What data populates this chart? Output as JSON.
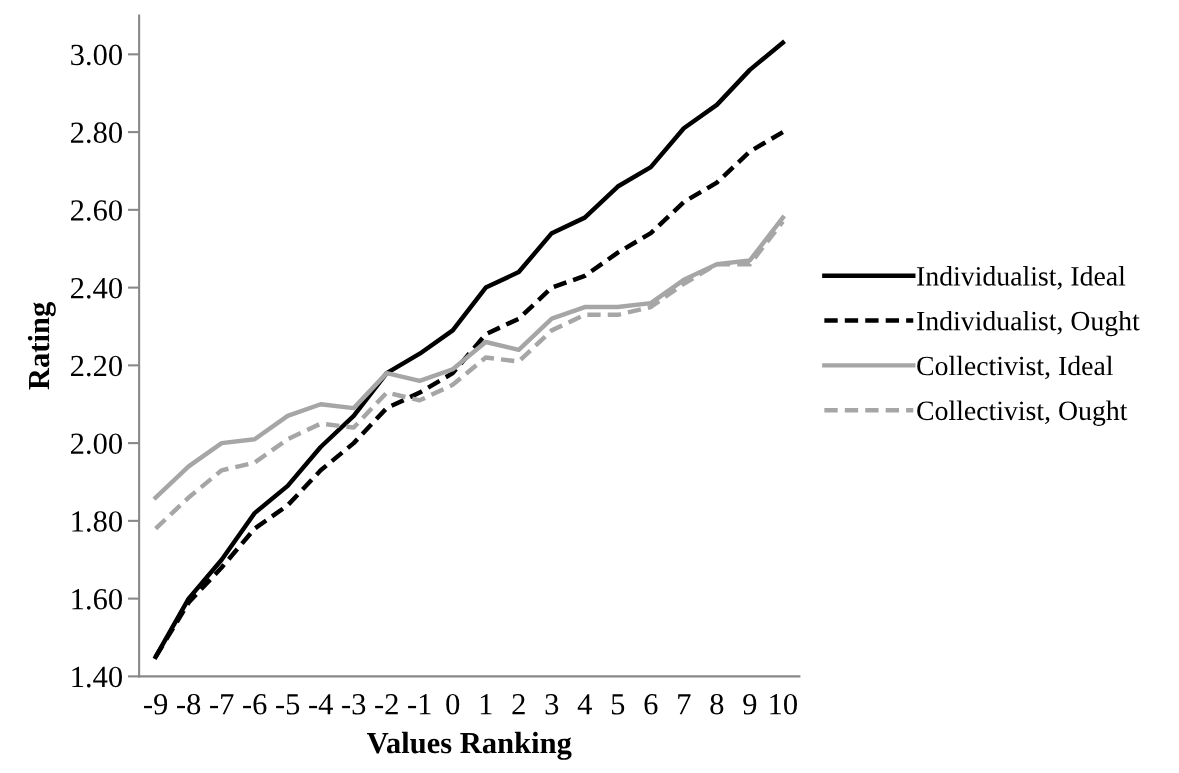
{
  "chart_data": {
    "type": "line",
    "xlabel": "Values Ranking",
    "ylabel": "Rating",
    "categories": [
      "-9",
      "-8",
      "-7",
      "-6",
      "-5",
      "-4",
      "-3",
      "-2",
      "-1",
      "0",
      "1",
      "2",
      "3",
      "4",
      "5",
      "6",
      "7",
      "8",
      "9",
      "10"
    ],
    "series": [
      {
        "name": "Individualist, Ideal",
        "color": "#000000",
        "line_style": "solid",
        "values": [
          1.45,
          1.6,
          1.7,
          1.82,
          1.89,
          1.99,
          2.07,
          2.18,
          2.23,
          2.29,
          2.4,
          2.44,
          2.54,
          2.58,
          2.66,
          2.71,
          2.81,
          2.87,
          2.96,
          3.03
        ]
      },
      {
        "name": "Individualist, Ought",
        "color": "#000000",
        "line_style": "dashed",
        "values": [
          1.45,
          1.59,
          1.68,
          1.78,
          1.84,
          1.93,
          2.0,
          2.09,
          2.13,
          2.18,
          2.28,
          2.32,
          2.4,
          2.43,
          2.49,
          2.54,
          2.62,
          2.67,
          2.75,
          2.8
        ]
      },
      {
        "name": "Collectivist, Ideal",
        "color": "#a6a6a6",
        "line_style": "solid",
        "values": [
          1.86,
          1.94,
          2.0,
          2.01,
          2.07,
          2.1,
          2.09,
          2.18,
          2.16,
          2.19,
          2.26,
          2.24,
          2.32,
          2.35,
          2.35,
          2.36,
          2.42,
          2.46,
          2.47,
          2.58
        ]
      },
      {
        "name": "Collectivist, Ought",
        "color": "#a6a6a6",
        "line_style": "dashed",
        "values": [
          1.78,
          1.86,
          1.93,
          1.95,
          2.01,
          2.05,
          2.04,
          2.13,
          2.11,
          2.15,
          2.22,
          2.21,
          2.29,
          2.33,
          2.33,
          2.35,
          2.41,
          2.46,
          2.46,
          2.57
        ]
      }
    ],
    "ylim": [
      1.4,
      3.1
    ],
    "yticks": [
      {
        "value": 1.4,
        "label": "1.40"
      },
      {
        "value": 1.6,
        "label": "1.60"
      },
      {
        "value": 1.8,
        "label": "1.80"
      },
      {
        "value": 2.0,
        "label": "2.00"
      },
      {
        "value": 2.2,
        "label": "2.20"
      },
      {
        "value": 2.4,
        "label": "2.40"
      },
      {
        "value": 2.6,
        "label": "2.60"
      },
      {
        "value": 2.8,
        "label": "2.80"
      },
      {
        "value": 3.0,
        "label": "3.00"
      }
    ],
    "grid": false,
    "legend": "right",
    "marker": "none"
  }
}
